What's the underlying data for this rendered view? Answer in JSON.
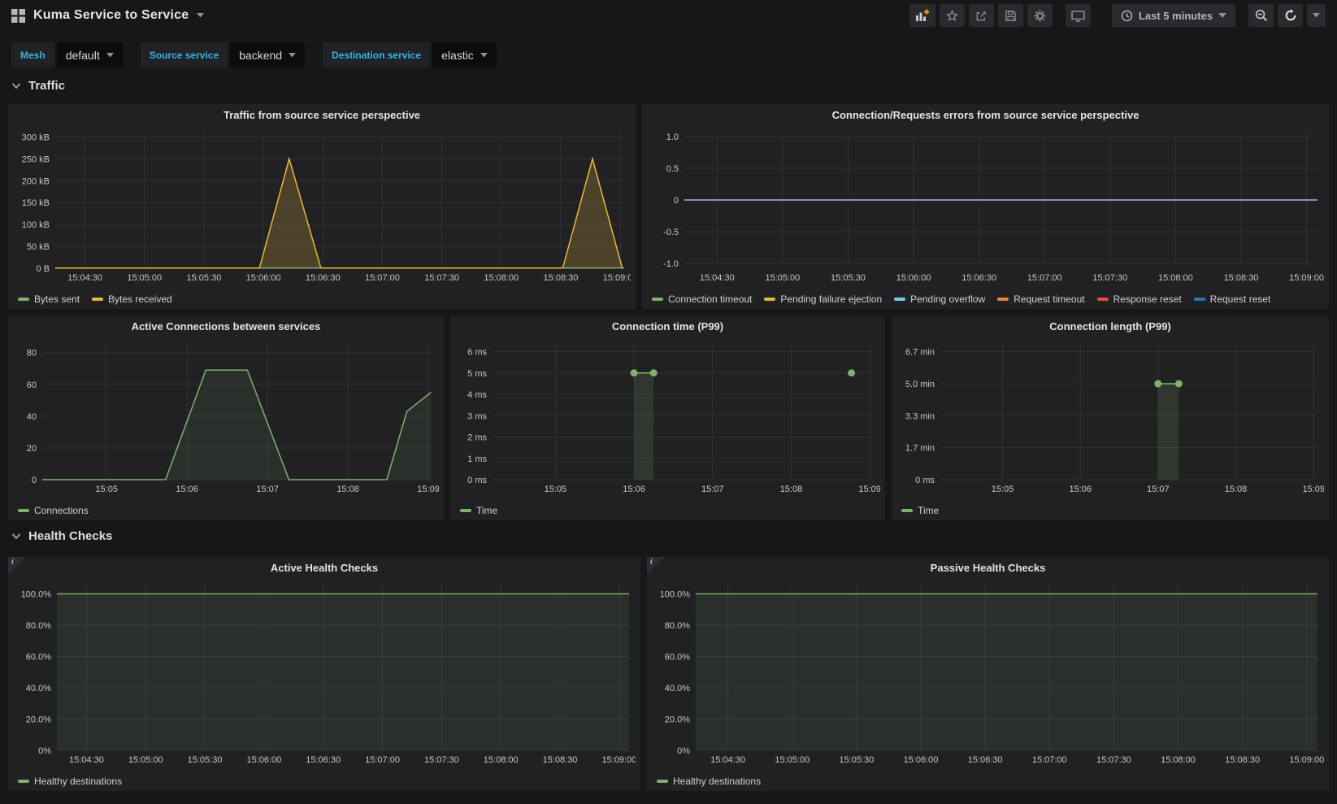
{
  "header": {
    "title": "Kuma Service to Service",
    "time_range": "Last 5 minutes",
    "icons": {
      "logo": "dashboard-grid",
      "toolbar": [
        "add-panel",
        "star",
        "share",
        "save",
        "settings",
        "tv-mode"
      ],
      "time": "clock",
      "right": [
        "zoom-out",
        "refresh",
        "refresh-interval-caret"
      ]
    }
  },
  "variables": [
    {
      "label": "Mesh",
      "value": "default"
    },
    {
      "label": "Source service",
      "value": "backend"
    },
    {
      "label": "Destination service",
      "value": "elastic"
    }
  ],
  "sections": {
    "traffic": "Traffic",
    "health": "Health Checks"
  },
  "colors": {
    "background": "#161719",
    "panel": "#212124",
    "accent_cyan": "#33b5e5",
    "green": "#7eb26d",
    "yellow": "#eab839",
    "light_blue": "#6ed0e0",
    "orange": "#ef843c",
    "red": "#e24d42",
    "blue": "#1f78c1",
    "zero_line": "#8d90ae",
    "add_plus_orange": "#f79520"
  },
  "chart_data": [
    {
      "type": "area",
      "title": "Traffic from source service perspective",
      "xlabel": "",
      "ylabel": "",
      "grid": true,
      "legend_position": "bottom",
      "margin_left": 52,
      "xmin": 15,
      "xmax": 302,
      "ymin": 0,
      "ymax": 312000,
      "xticks": [
        {
          "t": 30,
          "label": "15:04:30"
        },
        {
          "t": 60,
          "label": "15:05:00"
        },
        {
          "t": 90,
          "label": "15:05:30"
        },
        {
          "t": 120,
          "label": "15:06:00"
        },
        {
          "t": 150,
          "label": "15:06:30"
        },
        {
          "t": 180,
          "label": "15:07:00"
        },
        {
          "t": 210,
          "label": "15:07:30"
        },
        {
          "t": 240,
          "label": "15:08:00"
        },
        {
          "t": 270,
          "label": "15:08:30"
        },
        {
          "t": 300,
          "label": "15:09:00"
        }
      ],
      "yticks": [
        {
          "v": 0,
          "label": "0 B"
        },
        {
          "v": 50000,
          "label": "50 kB"
        },
        {
          "v": 100000,
          "label": "100 kB"
        },
        {
          "v": 150000,
          "label": "150 kB"
        },
        {
          "v": 200000,
          "label": "200 kB"
        },
        {
          "v": 250000,
          "label": "250 kB"
        },
        {
          "v": 300000,
          "label": "300 kB"
        }
      ],
      "series": [
        {
          "name": "Bytes sent",
          "color": "#7eb26d",
          "fill": 0.08,
          "points": [
            [
              15,
              600
            ],
            [
              302,
              600
            ]
          ]
        },
        {
          "name": "Bytes received",
          "color": "#eab839",
          "fill": 0.22,
          "points": [
            [
              15,
              400
            ],
            [
              118,
              400
            ],
            [
              133,
              250000
            ],
            [
              149,
              400
            ],
            [
              271,
              400
            ],
            [
              286,
              250000
            ],
            [
              301,
              600
            ]
          ]
        }
      ]
    },
    {
      "type": "line",
      "title": "Connection/Requests errors from source service perspective",
      "xlabel": "",
      "ylabel": "",
      "grid": true,
      "legend_position": "bottom",
      "margin_left": 46,
      "xmin": 15,
      "xmax": 305,
      "ymin": -1.08,
      "ymax": 1.08,
      "xticks": [
        {
          "t": 30,
          "label": "15:04:30"
        },
        {
          "t": 60,
          "label": "15:05:00"
        },
        {
          "t": 90,
          "label": "15:05:30"
        },
        {
          "t": 120,
          "label": "15:06:00"
        },
        {
          "t": 150,
          "label": "15:06:30"
        },
        {
          "t": 180,
          "label": "15:07:00"
        },
        {
          "t": 210,
          "label": "15:07:30"
        },
        {
          "t": 240,
          "label": "15:08:00"
        },
        {
          "t": 270,
          "label": "15:08:30"
        },
        {
          "t": 300,
          "label": "15:09:00"
        }
      ],
      "yticks": [
        {
          "v": -1,
          "label": "-1.0"
        },
        {
          "v": -0.5,
          "label": "-0.5"
        },
        {
          "v": 0,
          "label": "0"
        },
        {
          "v": 0.5,
          "label": "0.5"
        },
        {
          "v": 1,
          "label": "1.0"
        }
      ],
      "series": [
        {
          "name": "Connection timeout",
          "color": "#7eb26d",
          "fill": 0,
          "points": [
            [
              15,
              0
            ],
            [
              305,
              0
            ]
          ]
        },
        {
          "name": "Pending failure ejection",
          "color": "#eab839",
          "fill": 0,
          "points": [
            [
              15,
              0
            ],
            [
              305,
              0
            ]
          ]
        },
        {
          "name": "Pending overflow",
          "color": "#6ed0e0",
          "fill": 0,
          "points": [
            [
              15,
              0
            ],
            [
              305,
              0
            ]
          ]
        },
        {
          "name": "Request timeout",
          "color": "#ef843c",
          "fill": 0,
          "points": [
            [
              15,
              0
            ],
            [
              305,
              0
            ]
          ]
        },
        {
          "name": "Response reset",
          "color": "#e24d42",
          "fill": 0,
          "points": [
            [
              15,
              0
            ],
            [
              305,
              0
            ]
          ]
        },
        {
          "name": "Request reset",
          "color": "#1f78c1",
          "line_color": "#8d90ae",
          "width": 2,
          "fill": 0,
          "points": [
            [
              15,
              0
            ],
            [
              305,
              0
            ]
          ]
        }
      ]
    },
    {
      "type": "area",
      "title": "Active Connections between services",
      "xlabel": "",
      "ylabel": "",
      "grid": true,
      "legend_position": "bottom",
      "margin_left": 36,
      "xmin": 12,
      "xmax": 303,
      "ymin": 0,
      "ymax": 86,
      "xticks": [
        {
          "t": 60,
          "label": "15:05"
        },
        {
          "t": 120,
          "label": "15:06"
        },
        {
          "t": 180,
          "label": "15:07"
        },
        {
          "t": 240,
          "label": "15:08"
        },
        {
          "t": 300,
          "label": "15:09"
        }
      ],
      "yticks": [
        {
          "v": 0,
          "label": "0"
        },
        {
          "v": 20,
          "label": "20"
        },
        {
          "v": 40,
          "label": "40"
        },
        {
          "v": 60,
          "label": "60"
        },
        {
          "v": 80,
          "label": "80"
        }
      ],
      "series": [
        {
          "name": "Connections",
          "color": "#7eb26d",
          "fill": 0.1,
          "points": [
            [
              12,
              0
            ],
            [
              104,
              0
            ],
            [
              134,
              69
            ],
            [
              165,
              69
            ],
            [
              196,
              0
            ],
            [
              269,
              0
            ],
            [
              284,
              43
            ],
            [
              302,
              55
            ]
          ]
        }
      ]
    },
    {
      "type": "scatter",
      "title": "Connection time (P99)",
      "xlabel": "",
      "ylabel": "",
      "grid": true,
      "legend_position": "bottom",
      "margin_left": 46,
      "xmin": 12,
      "xmax": 303,
      "ymin": 0,
      "ymax": 6.4,
      "xticks": [
        {
          "t": 60,
          "label": "15:05"
        },
        {
          "t": 120,
          "label": "15:06"
        },
        {
          "t": 180,
          "label": "15:07"
        },
        {
          "t": 240,
          "label": "15:08"
        },
        {
          "t": 300,
          "label": "15:09"
        }
      ],
      "yticks": [
        {
          "v": 0,
          "label": "0 ms"
        },
        {
          "v": 1,
          "label": "1 ms"
        },
        {
          "v": 2,
          "label": "2 ms"
        },
        {
          "v": 3,
          "label": "3 ms"
        },
        {
          "v": 4,
          "label": "4 ms"
        },
        {
          "v": 5,
          "label": "5 ms"
        },
        {
          "v": 6,
          "label": "6 ms"
        }
      ],
      "series": [
        {
          "name": "Time",
          "color": "#7eb26d",
          "fill": 0.15,
          "markers": true,
          "segments": [
            [
              [
                120,
                5
              ],
              [
                135,
                5
              ]
            ],
            [
              [
                286,
                5
              ]
            ]
          ]
        }
      ]
    },
    {
      "type": "scatter",
      "title": "Connection length (P99)",
      "xlabel": "",
      "ylabel": "",
      "grid": true,
      "legend_position": "bottom",
      "margin_left": 54,
      "xmin": 12,
      "xmax": 303,
      "ymin": 0,
      "ymax": 427,
      "xticks": [
        {
          "t": 60,
          "label": "15:05"
        },
        {
          "t": 120,
          "label": "15:06"
        },
        {
          "t": 180,
          "label": "15:07"
        },
        {
          "t": 240,
          "label": "15:08"
        },
        {
          "t": 300,
          "label": "15:09"
        }
      ],
      "yticks": [
        {
          "v": 0,
          "label": "0 ms"
        },
        {
          "v": 100,
          "label": "1.7 min"
        },
        {
          "v": 200,
          "label": "3.3 min"
        },
        {
          "v": 300,
          "label": "5.0 min"
        },
        {
          "v": 400,
          "label": "6.7 min"
        }
      ],
      "series": [
        {
          "name": "Time",
          "color": "#7eb26d",
          "fill": 0.15,
          "markers": true,
          "segments": [
            [
              [
                180,
                300
              ],
              [
                196,
                300
              ]
            ]
          ]
        }
      ]
    },
    {
      "type": "area",
      "title": "Active Health Checks",
      "has_info": true,
      "xlabel": "",
      "ylabel": "",
      "grid": true,
      "legend_position": "bottom",
      "margin_left": 54,
      "xmin": 15,
      "xmax": 305,
      "ymin": 0,
      "ymax": 106,
      "xticks": [
        {
          "t": 30,
          "label": "15:04:30"
        },
        {
          "t": 60,
          "label": "15:05:00"
        },
        {
          "t": 90,
          "label": "15:05:30"
        },
        {
          "t": 120,
          "label": "15:06:00"
        },
        {
          "t": 150,
          "label": "15:06:30"
        },
        {
          "t": 180,
          "label": "15:07:00"
        },
        {
          "t": 210,
          "label": "15:07:30"
        },
        {
          "t": 240,
          "label": "15:08:00"
        },
        {
          "t": 270,
          "label": "15:08:30"
        },
        {
          "t": 300,
          "label": "15:09:00"
        }
      ],
      "yticks": [
        {
          "v": 0,
          "label": "0%"
        },
        {
          "v": 20,
          "label": "20.0%"
        },
        {
          "v": 40,
          "label": "40.0%"
        },
        {
          "v": 60,
          "label": "60.0%"
        },
        {
          "v": 80,
          "label": "80.0%"
        },
        {
          "v": 100,
          "label": "100.0%"
        }
      ],
      "series": [
        {
          "name": "Healthy destinations",
          "color": "#7eb26d",
          "fill": 0.1,
          "points": [
            [
              15,
              100
            ],
            [
              305,
              100
            ]
          ]
        }
      ]
    },
    {
      "type": "area",
      "title": "Passive Health Checks",
      "has_info": true,
      "xlabel": "",
      "ylabel": "",
      "grid": true,
      "legend_position": "bottom",
      "margin_left": 54,
      "xmin": 15,
      "xmax": 305,
      "ymin": 0,
      "ymax": 106,
      "xticks": [
        {
          "t": 30,
          "label": "15:04:30"
        },
        {
          "t": 60,
          "label": "15:05:00"
        },
        {
          "t": 90,
          "label": "15:05:30"
        },
        {
          "t": 120,
          "label": "15:06:00"
        },
        {
          "t": 150,
          "label": "15:06:30"
        },
        {
          "t": 180,
          "label": "15:07:00"
        },
        {
          "t": 210,
          "label": "15:07:30"
        },
        {
          "t": 240,
          "label": "15:08:00"
        },
        {
          "t": 270,
          "label": "15:08:30"
        },
        {
          "t": 300,
          "label": "15:09:00"
        }
      ],
      "yticks": [
        {
          "v": 0,
          "label": "0%"
        },
        {
          "v": 20,
          "label": "20.0%"
        },
        {
          "v": 40,
          "label": "40.0%"
        },
        {
          "v": 60,
          "label": "60.0%"
        },
        {
          "v": 80,
          "label": "80.0%"
        },
        {
          "v": 100,
          "label": "100.0%"
        }
      ],
      "series": [
        {
          "name": "Healthy destinations",
          "color": "#7eb26d",
          "fill": 0.1,
          "points": [
            [
              15,
              100
            ],
            [
              305,
              100
            ]
          ]
        }
      ]
    }
  ]
}
